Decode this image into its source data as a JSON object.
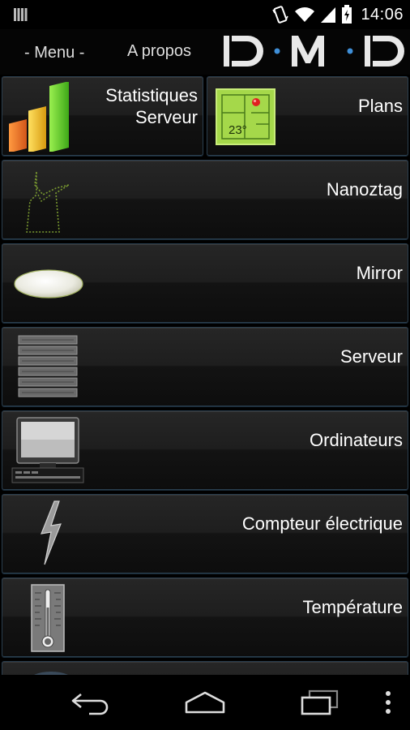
{
  "status_bar": {
    "time": "14:06",
    "icons": [
      "notification-bars-icon",
      "vibrate-icon",
      "wifi-icon",
      "signal-icon",
      "battery-charging-icon"
    ]
  },
  "header": {
    "menu_label": "- Menu -",
    "about_label": "A propos",
    "logo_text": "ID·M·ID"
  },
  "tiles": [
    {
      "label_line1": "Statistiques",
      "label_line2": "Serveur",
      "icon": "bar-chart-icon"
    },
    {
      "label": "Plans",
      "icon": "floor-plan-icon",
      "plan_temp": "23°"
    },
    {
      "label": "Nanoztag",
      "icon": "nanoztag-icon"
    },
    {
      "label": "Mirror",
      "icon": "mirror-disc-icon"
    },
    {
      "label": "Serveur",
      "icon": "server-rack-icon"
    },
    {
      "label": "Ordinateurs",
      "icon": "computer-icon"
    },
    {
      "label": "Compteur électrique",
      "icon": "lightning-icon"
    },
    {
      "label": "Température",
      "icon": "thermometer-icon"
    }
  ],
  "nav_bar": {
    "buttons": [
      "back-icon",
      "home-icon",
      "recent-apps-icon",
      "overflow-menu-icon"
    ]
  },
  "colors": {
    "tile_border": "#2a3e4e",
    "chart_green": "#6ed22a",
    "chart_orange": "#f07a22",
    "chart_yellow": "#f0c020",
    "plan_green": "#a5d84a",
    "logo_blue": "#3f8fd8"
  }
}
